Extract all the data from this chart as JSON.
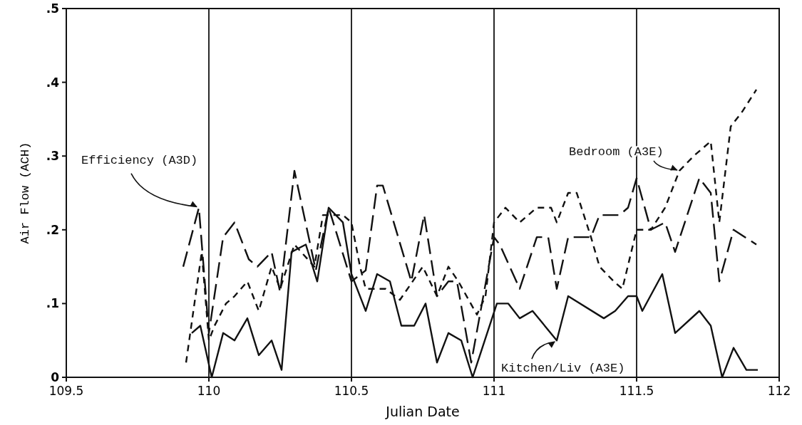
{
  "chart_data": {
    "type": "line",
    "xlabel": "Julian Date",
    "ylabel": "Air Flow (ACH)",
    "xlim": [
      109.5,
      112
    ],
    "xticks": [
      109.5,
      110,
      110.5,
      111,
      111.5,
      112
    ],
    "ylim": [
      0,
      0.5
    ],
    "yticks": [
      0,
      {
        "value": 0.1,
        "label": ".1"
      },
      {
        "value": 0.2,
        "label": ".2"
      },
      {
        "value": 0.3,
        "label": ".3"
      },
      {
        "value": 0.4,
        "label": ".4"
      },
      {
        "value": 0.5,
        "label": ".5"
      }
    ],
    "grid": "x",
    "series": [
      {
        "name": "Efficiency (A3D)",
        "color": "#111111",
        "line_style": "dashed",
        "x": [
          109.91,
          109.965,
          110.0,
          110.05,
          110.09,
          110.14,
          110.17,
          110.22,
          110.25,
          110.3,
          110.375,
          110.42,
          110.5,
          110.55,
          110.59,
          110.61,
          110.71,
          110.755,
          110.8,
          110.84,
          110.87,
          110.92,
          111.0,
          111.02,
          111.09,
          111.15,
          111.19,
          111.22,
          111.26,
          111.34,
          111.37,
          111.44,
          111.47,
          111.5,
          111.55,
          111.6,
          111.635,
          111.72,
          111.76,
          111.79,
          111.84,
          111.92
        ],
        "values": [
          0.15,
          0.23,
          0.06,
          0.19,
          0.21,
          0.16,
          0.15,
          0.17,
          0.115,
          0.28,
          0.145,
          0.23,
          0.13,
          0.145,
          0.26,
          0.26,
          0.13,
          0.22,
          0.11,
          0.13,
          0.13,
          0.02,
          0.19,
          0.18,
          0.12,
          0.19,
          0.19,
          0.12,
          0.19,
          0.19,
          0.22,
          0.22,
          0.23,
          0.27,
          0.2,
          0.21,
          0.17,
          0.27,
          0.25,
          0.13,
          0.2,
          0.18
        ]
      },
      {
        "name": "Bedroom (A3E)",
        "color": "#111111",
        "line_style": "dotted",
        "x": [
          109.92,
          109.975,
          110.0,
          110.02,
          110.06,
          110.09,
          110.135,
          110.175,
          110.22,
          110.25,
          110.3,
          110.37,
          110.4,
          110.47,
          110.5,
          110.53,
          110.55,
          110.62,
          110.67,
          110.75,
          110.8,
          110.84,
          110.875,
          110.94,
          110.97,
          111.0,
          111.04,
          111.09,
          111.15,
          111.2,
          111.22,
          111.26,
          111.29,
          111.34,
          111.37,
          111.42,
          111.45,
          111.5,
          111.55,
          111.6,
          111.65,
          111.7,
          111.76,
          111.79,
          111.83,
          111.87,
          111.92
        ],
        "values": [
          0.02,
          0.17,
          0.05,
          0.07,
          0.1,
          0.11,
          0.13,
          0.09,
          0.15,
          0.12,
          0.18,
          0.15,
          0.22,
          0.22,
          0.21,
          0.15,
          0.12,
          0.12,
          0.105,
          0.15,
          0.11,
          0.15,
          0.13,
          0.085,
          0.11,
          0.21,
          0.23,
          0.21,
          0.23,
          0.23,
          0.21,
          0.25,
          0.25,
          0.19,
          0.15,
          0.13,
          0.12,
          0.2,
          0.2,
          0.23,
          0.28,
          0.3,
          0.32,
          0.21,
          0.34,
          0.36,
          0.39
        ]
      },
      {
        "name": "Kitchen/Liv (A3E)",
        "color": "#111111",
        "line_style": "solid",
        "x": [
          109.94,
          109.97,
          110.01,
          110.05,
          110.09,
          110.135,
          110.175,
          110.22,
          110.255,
          110.29,
          110.34,
          110.38,
          110.42,
          110.47,
          110.5,
          110.55,
          110.59,
          110.635,
          110.675,
          110.72,
          110.76,
          110.8,
          110.84,
          110.885,
          110.925,
          111.01,
          111.05,
          111.09,
          111.135,
          111.22,
          111.26,
          111.385,
          111.425,
          111.47,
          111.5,
          111.52,
          111.59,
          111.635,
          111.72,
          111.76,
          111.8,
          111.84,
          111.885,
          111.925
        ],
        "values": [
          0.06,
          0.07,
          0.0,
          0.06,
          0.05,
          0.08,
          0.03,
          0.05,
          0.01,
          0.17,
          0.18,
          0.13,
          0.23,
          0.21,
          0.14,
          0.09,
          0.14,
          0.13,
          0.07,
          0.07,
          0.1,
          0.02,
          0.06,
          0.05,
          0.0,
          0.1,
          0.1,
          0.08,
          0.09,
          0.05,
          0.11,
          0.08,
          0.09,
          0.11,
          0.11,
          0.09,
          0.14,
          0.06,
          0.09,
          0.07,
          0.0,
          0.04,
          0.01,
          0.01
        ]
      }
    ]
  }
}
